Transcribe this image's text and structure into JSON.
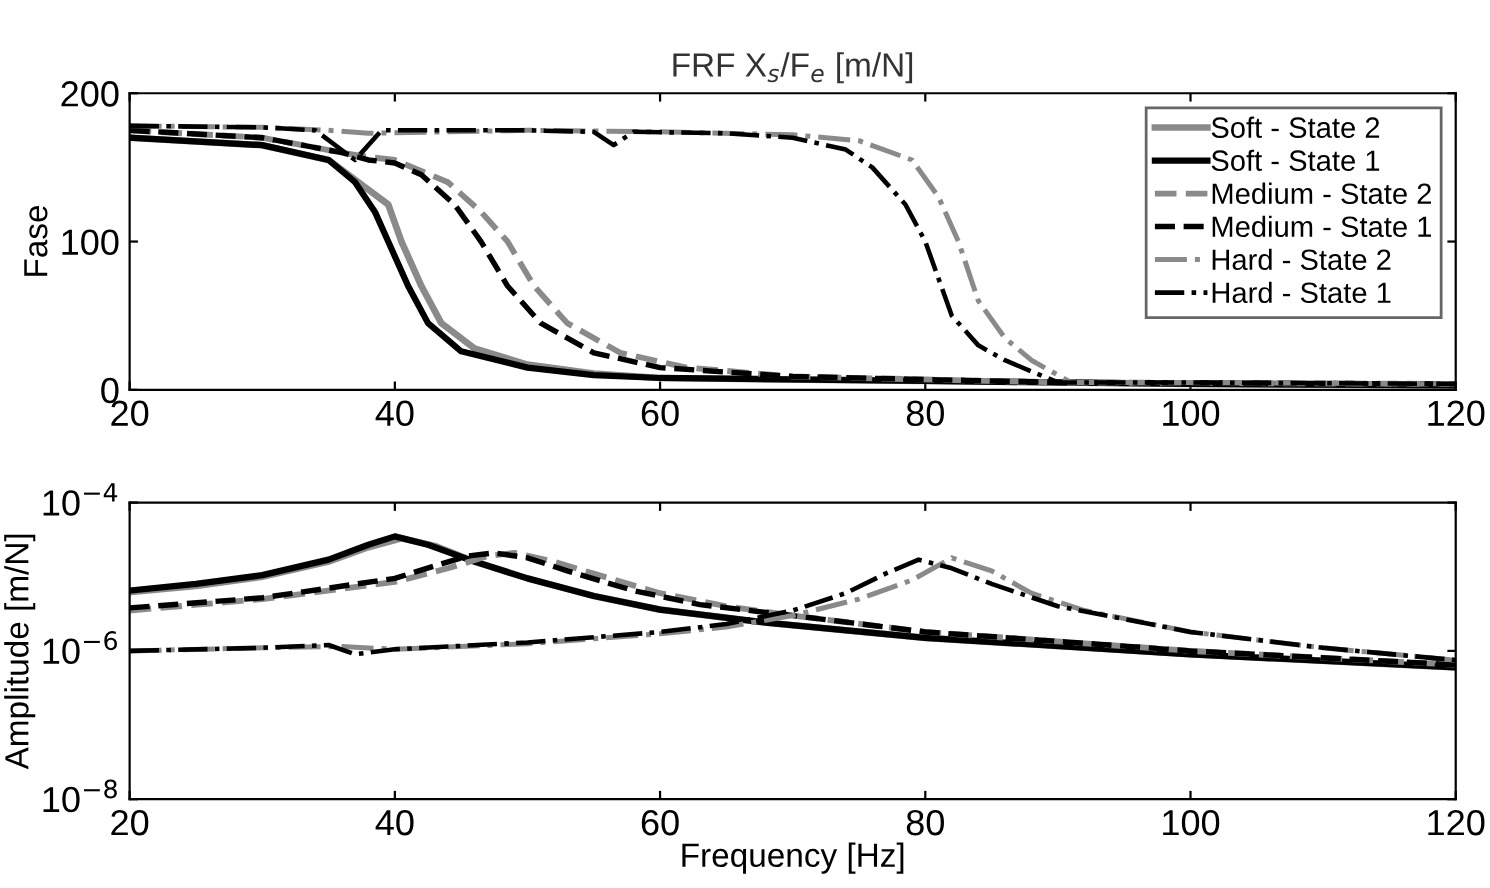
{
  "chart_data": [
    {
      "type": "line",
      "title": "FRF X$_{s}$/F$_{e}$ [m/N]",
      "ylabel": "Fase",
      "xlim": [
        20,
        120
      ],
      "xticks": [
        20,
        40,
        60,
        80,
        100,
        120
      ],
      "ylim": [
        0,
        200
      ],
      "yticks": [
        0,
        100,
        200
      ],
      "grid": false,
      "legend": "top right",
      "series": [
        {
          "name": "Soft - State 2",
          "color": "#8a8a8a",
          "line_style": "solid",
          "x": [
            20,
            30,
            35,
            38,
            39.5,
            40.5,
            42,
            43.5,
            46,
            50,
            55,
            60,
            80,
            100,
            120
          ],
          "values": [
            170,
            165,
            155,
            135,
            125,
            100,
            70,
            45,
            28,
            17,
            11,
            8,
            6,
            4,
            3
          ]
        },
        {
          "name": "Soft - State 1",
          "color": "#000000",
          "line_style": "solid",
          "x": [
            20,
            30,
            35,
            37,
            38.5,
            39.5,
            41,
            42.5,
            45,
            50,
            55,
            60,
            80,
            100,
            120
          ],
          "values": [
            170,
            165,
            155,
            140,
            120,
            100,
            70,
            45,
            26,
            15,
            10,
            8,
            6,
            4,
            3
          ]
        },
        {
          "name": "Medium - State 2",
          "color": "#8a8a8a",
          "line_style": "dashed",
          "x": [
            20,
            30,
            36,
            38,
            40,
            44,
            46.5,
            48.5,
            50.5,
            53,
            57,
            62,
            70,
            90,
            120
          ],
          "values": [
            175,
            170,
            160,
            157,
            155,
            140,
            120,
            100,
            70,
            45,
            25,
            15,
            9,
            5,
            4
          ]
        },
        {
          "name": "Medium - State 1",
          "color": "#000000",
          "line_style": "dashed",
          "x": [
            20,
            30,
            36,
            38,
            40,
            42,
            44.5,
            46.5,
            48.5,
            51,
            55,
            60,
            70,
            90,
            120
          ],
          "values": [
            175,
            170,
            160,
            155,
            153,
            145,
            125,
            100,
            70,
            45,
            25,
            15,
            9,
            5,
            4
          ]
        },
        {
          "name": "Hard - State 2",
          "color": "#8a8a8a",
          "line_style": "dashdot",
          "x": [
            20,
            30,
            35,
            38,
            50,
            60,
            70,
            75,
            79,
            81,
            82.5,
            84,
            86,
            88,
            91,
            100,
            120
          ],
          "values": [
            178,
            177,
            175,
            173,
            175,
            174,
            172,
            168,
            155,
            130,
            100,
            60,
            35,
            20,
            5,
            5,
            4
          ]
        },
        {
          "name": "Hard - State 1",
          "color": "#000000",
          "line_style": "dashdot",
          "x": [
            20,
            30,
            34,
            37,
            39,
            50,
            55,
            56.5,
            58,
            65,
            70,
            74,
            76,
            78.5,
            80,
            82,
            84,
            86,
            90,
            100,
            120
          ],
          "values": [
            178,
            177,
            175,
            155,
            175,
            175,
            174,
            165,
            174,
            173,
            170,
            162,
            150,
            125,
            100,
            50,
            30,
            20,
            5,
            5,
            4
          ]
        }
      ]
    },
    {
      "type": "line",
      "xlabel": "Frequency [Hz]",
      "ylabel": "Amplitude [m/N]",
      "log": "y",
      "xlim": [
        20,
        120
      ],
      "xticks": [
        20,
        40,
        60,
        80,
        100,
        120
      ],
      "ylim": [
        1e-08,
        0.0001
      ],
      "yticks": [
        {
          "value": 1e-08,
          "label": "10$^{−8}$"
        },
        {
          "value": 1e-06,
          "label": "10$^{−6}$"
        },
        {
          "value": 0.0001,
          "label": "10$^{−4}$"
        }
      ],
      "grid": false,
      "series": [
        {
          "color": "#8a8a8a",
          "line_style": "solid",
          "x": [
            20,
            25,
            30,
            35,
            38,
            40.5,
            43,
            46,
            50,
            55,
            60,
            68,
            80,
            100,
            120
          ],
          "values": [
            6.2e-06,
            7.5e-06,
            1e-05,
            1.6e-05,
            2.5e-05,
            3.3e-05,
            2.6e-05,
            1.6e-05,
            9.5e-06,
            5.5e-06,
            3.6e-06,
            2.4e-06,
            1.5e-06,
            9e-07,
            6e-07
          ]
        },
        {
          "color": "#000000",
          "line_style": "solid",
          "x": [
            20,
            25,
            30,
            35,
            38,
            40,
            42.5,
            46,
            50,
            55,
            60,
            68,
            80,
            100,
            120
          ],
          "values": [
            6.5e-06,
            8e-06,
            1.05e-05,
            1.7e-05,
            2.7e-05,
            3.5e-05,
            2.7e-05,
            1.6e-05,
            9.5e-06,
            5.5e-06,
            3.6e-06,
            2.4e-06,
            1.5e-06,
            9e-07,
            6e-07
          ]
        },
        {
          "color": "#8a8a8a",
          "line_style": "dashed",
          "x": [
            20,
            30,
            40,
            44,
            47,
            49,
            52,
            55,
            60,
            65,
            70,
            80,
            100,
            120
          ],
          "values": [
            3.5e-06,
            5e-06,
            8.5e-06,
            1.3e-05,
            1.9e-05,
            2.1e-05,
            1.6e-05,
            1.1e-05,
            6e-06,
            4e-06,
            3e-06,
            1.8e-06,
            1e-06,
            6.5e-07
          ]
        },
        {
          "color": "#000000",
          "line_style": "dashed",
          "x": [
            20,
            30,
            40,
            43,
            45.5,
            47.5,
            50,
            53,
            58,
            63,
            70,
            80,
            100,
            120
          ],
          "values": [
            3.8e-06,
            5.2e-06,
            9.5e-06,
            1.4e-05,
            1.9e-05,
            2.1e-05,
            1.8e-05,
            1.2e-05,
            6.5e-06,
            4.2e-06,
            3e-06,
            1.8e-06,
            1e-06,
            6.5e-07
          ]
        },
        {
          "color": "#8a8a8a",
          "line_style": "dashdot",
          "x": [
            20,
            30,
            36,
            40,
            50,
            60,
            65,
            70,
            75,
            79,
            82,
            85,
            88,
            92,
            100,
            110,
            120
          ],
          "values": [
            1e-06,
            1.1e-06,
            1.15e-06,
            1.05e-06,
            1.25e-06,
            1.7e-06,
            2.1e-06,
            3e-06,
            5e-06,
            9e-06,
            1.8e-05,
            1.2e-05,
            6e-06,
            3.5e-06,
            1.8e-06,
            1.1e-06,
            7.5e-07
          ]
        },
        {
          "color": "#000000",
          "line_style": "dashdot",
          "x": [
            20,
            30,
            35,
            37,
            40,
            50,
            60,
            65,
            70,
            74,
            77,
            79.5,
            82,
            85,
            90,
            100,
            110,
            120
          ],
          "values": [
            1e-06,
            1.1e-06,
            1.2e-06,
            9e-07,
            1.05e-06,
            1.3e-06,
            1.8e-06,
            2.3e-06,
            3.5e-06,
            6e-06,
            1.1e-05,
            1.7e-05,
            1.3e-05,
            8e-06,
            4e-06,
            1.8e-06,
            1.1e-06,
            7.5e-07
          ]
        }
      ]
    }
  ]
}
